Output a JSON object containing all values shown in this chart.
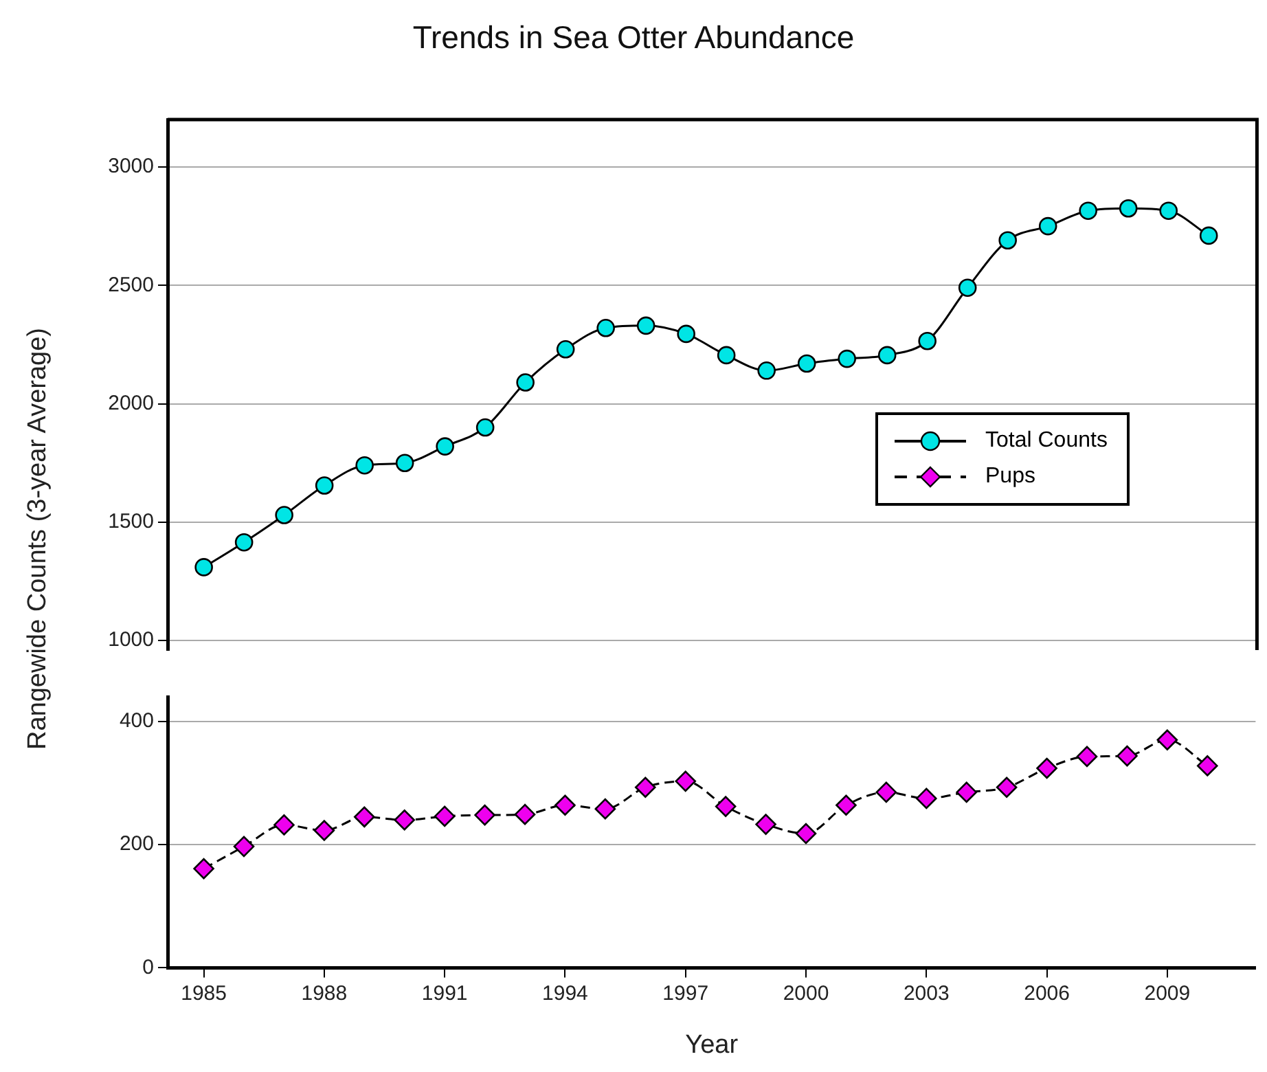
{
  "chart_data": [
    {
      "type": "line",
      "title": "Trends in Sea Otter Abundance",
      "ylabel": "Rangewide Counts (3-year Average)",
      "x": [
        1985,
        1986,
        1987,
        1988,
        1989,
        1990,
        1991,
        1992,
        1993,
        1994,
        1995,
        1996,
        1997,
        1998,
        1999,
        2000,
        2001,
        2002,
        2003,
        2004,
        2005,
        2006,
        2007,
        2008,
        2009,
        2010
      ],
      "xlim": [
        1984.1,
        2011.2
      ],
      "xticks": [
        1985,
        1988,
        1991,
        1994,
        1997,
        2000,
        2003,
        2006,
        2009
      ],
      "ylim": [
        960,
        3200
      ],
      "yticks": [
        1000,
        1500,
        2000,
        2500,
        3000
      ],
      "tick_labels": "y",
      "grid": "y",
      "legend": "right",
      "series": [
        {
          "name": "Total Counts",
          "color": "#00e5e5",
          "marker": "circle",
          "line_style": "solid",
          "values": [
            1310,
            1415,
            1530,
            1655,
            1740,
            1750,
            1820,
            1900,
            2090,
            2230,
            2320,
            2330,
            2295,
            2205,
            2140,
            2170,
            2190,
            2205,
            2265,
            2490,
            2690,
            2750,
            2815,
            2825,
            2815,
            2710
          ]
        }
      ]
    },
    {
      "type": "line",
      "xlabel": "Year",
      "x": [
        1985,
        1986,
        1987,
        1988,
        1989,
        1990,
        1991,
        1992,
        1993,
        1994,
        1995,
        1996,
        1997,
        1998,
        1999,
        2000,
        2001,
        2002,
        2003,
        2004,
        2005,
        2006,
        2007,
        2008,
        2009,
        2010
      ],
      "xlim": [
        1984.1,
        2011.2
      ],
      "xticks": [
        1985,
        1988,
        1991,
        1994,
        1997,
        2000,
        2003,
        2006,
        2009
      ],
      "ylim": [
        0,
        440
      ],
      "yticks": [
        0,
        200,
        400
      ],
      "grid": "y",
      "legend": "right",
      "series": [
        {
          "name": "Pups",
          "color": "#ee00ee",
          "marker": "diamond",
          "line_style": "dashed",
          "values": [
            161,
            197,
            232,
            223,
            245,
            240,
            246,
            248,
            249,
            264,
            258,
            293,
            303,
            262,
            233,
            218,
            264,
            285,
            275,
            285,
            293,
            324,
            343,
            344,
            370,
            328
          ]
        }
      ]
    }
  ]
}
